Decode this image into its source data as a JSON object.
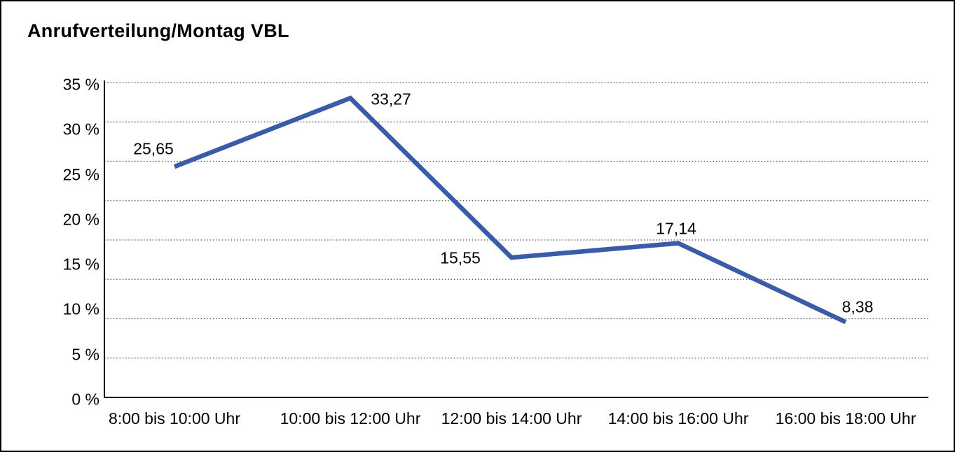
{
  "title": "Anrufverteilung/Montag VBL",
  "colors": {
    "line": "#3A5CA8",
    "axis": "#000000",
    "gridline": "#4d4d4d",
    "text": "#000000",
    "background": "#ffffff",
    "border": "#000000"
  },
  "chart_data": {
    "type": "line",
    "title": "Anrufverteilung/Montag VBL",
    "categories": [
      "8:00 bis 10:00 Uhr",
      "10:00 bis 12:00 Uhr",
      "12:00 bis 14:00 Uhr",
      "14:00 bis 16:00 Uhr",
      "16:00 bis 18:00 Uhr"
    ],
    "values": [
      25.65,
      33.27,
      15.55,
      17.14,
      8.38
    ],
    "value_labels": [
      "25,65",
      "33,27",
      "15,55",
      "17,14",
      "8,38"
    ],
    "unit": "%",
    "ylim": [
      0,
      35
    ],
    "ytick_step": 5,
    "ytick_labels": [
      "35 %",
      "30 %",
      "25 %",
      "20 %",
      "15 %",
      "10 %",
      "5 %",
      "0 %"
    ],
    "grid": "horizontal-dotted",
    "grid_intervals": 8,
    "legend": "none",
    "xlabel": "",
    "ylabel": ""
  }
}
